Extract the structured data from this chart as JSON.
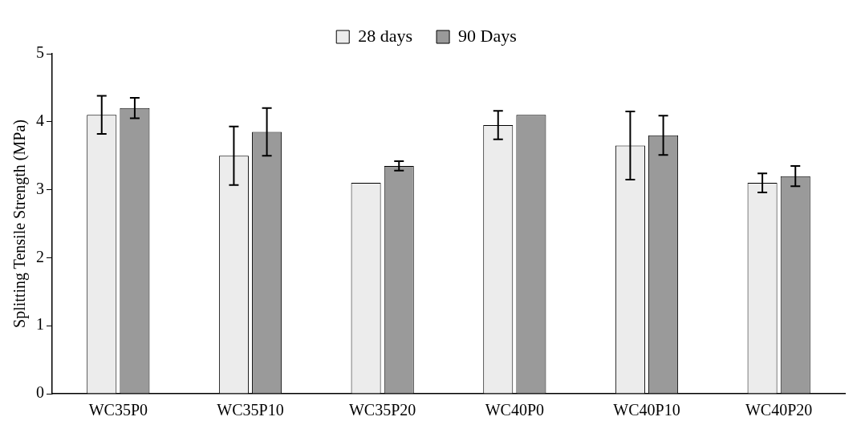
{
  "chart_data": {
    "type": "bar",
    "ylabel": "Splitting Tensile Strength (MPa)",
    "categories": [
      "WC35P0",
      "WC35P10",
      "WC35P20",
      "WC40P0",
      "WC40P10",
      "WC40P20"
    ],
    "series": [
      {
        "name": "28 days",
        "color": "#ececec",
        "values": [
          4.1,
          3.5,
          3.1,
          3.95,
          3.65,
          3.1
        ],
        "errors": [
          0.28,
          0.43,
          null,
          0.21,
          0.5,
          0.14
        ]
      },
      {
        "name": "90 Days",
        "color": "#9a9a9a",
        "values": [
          4.2,
          3.85,
          3.35,
          4.1,
          3.8,
          3.2
        ],
        "errors": [
          0.15,
          0.35,
          0.07,
          null,
          0.29,
          0.15
        ]
      }
    ],
    "ylim": [
      0,
      5
    ],
    "yticks": [
      0,
      1,
      2,
      3,
      4,
      5
    ],
    "grid": false,
    "legend": "top"
  }
}
